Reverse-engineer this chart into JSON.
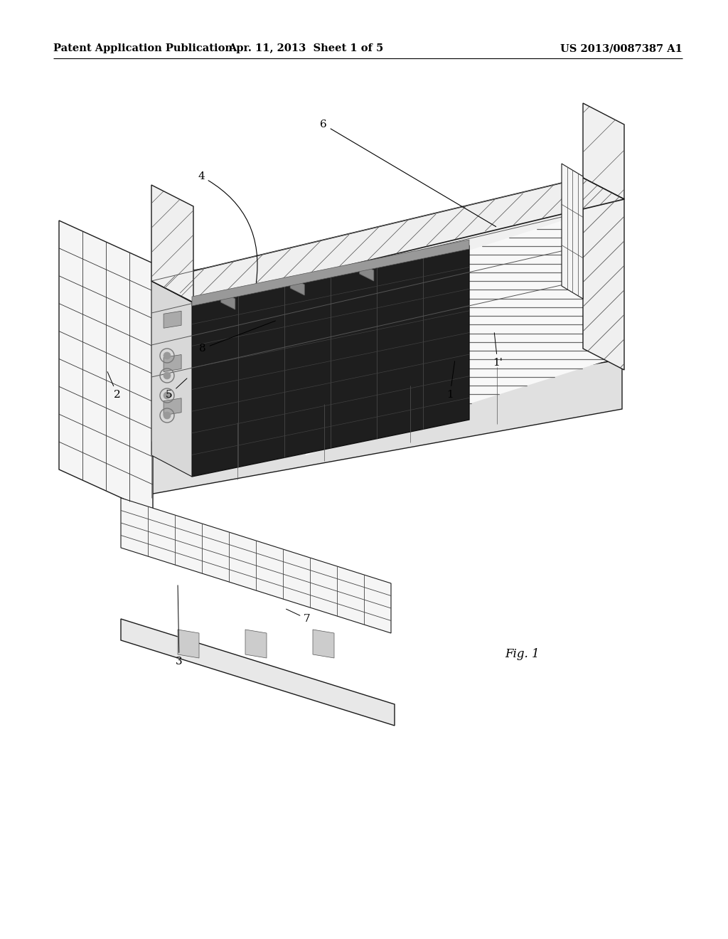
{
  "background_color": "#ffffff",
  "header_left": "Patent Application Publication",
  "header_center": "Apr. 11, 2013  Sheet 1 of 5",
  "header_right": "US 2013/0087387 A1",
  "header_fontsize": 10.5,
  "fig_label": "Fig. 1",
  "fig_label_fontsize": 12,
  "line_color": "#1a1a1a",
  "label_fontsize": 11
}
